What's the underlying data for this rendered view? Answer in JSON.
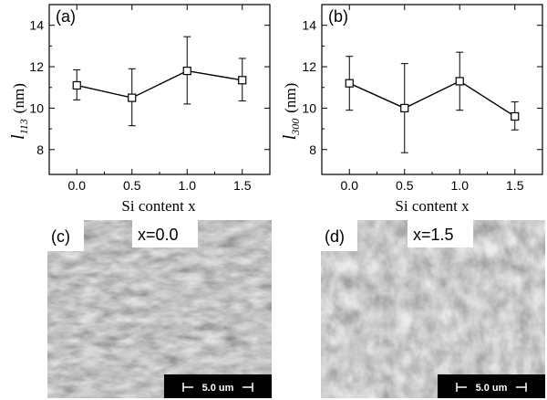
{
  "chart_data": [
    {
      "type": "line",
      "panel_label": "(a)",
      "ylabel_symbol": "l",
      "ylabel_subscript": "113",
      "ylabel_unit": "(nm)",
      "xlabel": "Si content x",
      "x": [
        0.0,
        0.5,
        1.0,
        1.5
      ],
      "x_ticks": [
        "0.0",
        "0.5",
        "1.0",
        "1.5"
      ],
      "xlim": [
        -0.25,
        1.75
      ],
      "y_ticks": [
        "8",
        "10",
        "12",
        "14"
      ],
      "ylim": [
        6.8,
        15.0
      ],
      "series": [
        {
          "values": [
            11.1,
            10.5,
            11.8,
            11.35
          ],
          "error_low": [
            10.4,
            9.15,
            10.2,
            10.35
          ],
          "error_high": [
            11.85,
            11.9,
            13.45,
            12.4
          ]
        }
      ],
      "marker": "open-square",
      "grid": false
    },
    {
      "type": "line",
      "panel_label": "(b)",
      "ylabel_symbol": "l",
      "ylabel_subscript": "300",
      "ylabel_unit": "(nm)",
      "xlabel": "Si content x",
      "x": [
        0.0,
        0.5,
        1.0,
        1.5
      ],
      "x_ticks": [
        "0.0",
        "0.5",
        "1.0",
        "1.5"
      ],
      "xlim": [
        -0.25,
        1.75
      ],
      "y_ticks": [
        "8",
        "10",
        "12",
        "14"
      ],
      "ylim": [
        6.8,
        15.0
      ],
      "series": [
        {
          "values": [
            11.2,
            10.0,
            11.3,
            9.6
          ],
          "error_low": [
            9.9,
            7.85,
            9.9,
            8.95
          ],
          "error_high": [
            12.5,
            12.15,
            12.7,
            10.3
          ]
        }
      ],
      "marker": "open-square",
      "grid": false
    }
  ],
  "images": [
    {
      "panel_label": "(c)",
      "caption": "x=0.0",
      "scale_bar": "5.0 um"
    },
    {
      "panel_label": "(d)",
      "caption": "x=1.5",
      "scale_bar": "5.0 um"
    }
  ]
}
